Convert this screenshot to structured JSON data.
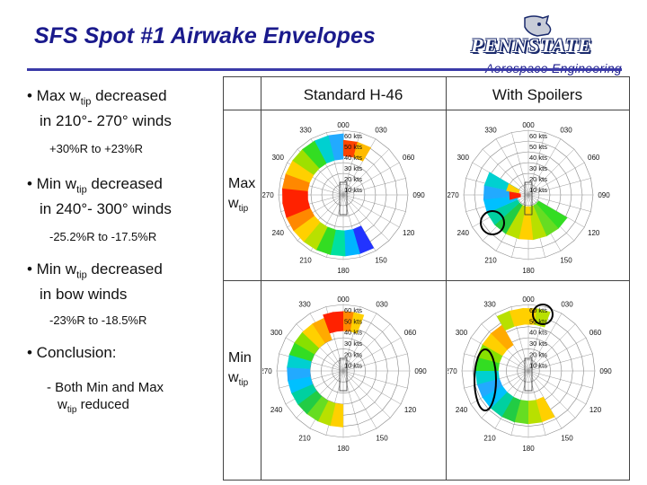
{
  "slide": {
    "title": "SFS Spot #1 Airwake Envelopes",
    "department": "Aerospace Engineering",
    "logo_text": "PENNSTATE"
  },
  "left": {
    "b1_line1": "• Max w",
    "b1_sub": "tip",
    "b1_line1_rest": " decreased",
    "b1_line2": "in 210°- 270° winds",
    "b1_note": "+30%R to +23%R",
    "b2_line1": "• Min w",
    "b2_sub": "tip",
    "b2_line1_rest": " decreased",
    "b2_line2": "in 240°- 300° winds",
    "b2_note": "-25.2%R to -17.5%R",
    "b3_line1": "• Min w",
    "b3_sub": "tip",
    "b3_line1_rest": " decreased",
    "b3_line2": "in bow winds",
    "b3_note": "-23%R to -18.5%R",
    "b4": "• Conclusion:",
    "b4_sub_line1": "- Both Min and Max",
    "b4_sub_w": "w",
    "b4_sub_tip": "tip",
    "b4_sub_rest": " reduced"
  },
  "table": {
    "col1": "Standard H-46",
    "col2": "With Spoilers",
    "row1_label": "Max",
    "row1_w": "w",
    "row1_sub": "tip",
    "row2_label": "Min",
    "row2_w": "w",
    "row2_sub": "tip"
  },
  "polar": {
    "speed_labels": [
      "60 kts",
      "50 kts",
      "40 kts",
      "30 kts",
      "20 kts",
      "10 kts"
    ],
    "top_label": "000",
    "angle_labels": [
      "330",
      "030",
      "300",
      "060",
      "270",
      "090",
      "240",
      "120",
      "210",
      "150",
      "180"
    ]
  },
  "colors": {
    "title": "#1a1a8c",
    "accent_rule": "#3a3aa8",
    "highlight_circle": "#000000"
  }
}
